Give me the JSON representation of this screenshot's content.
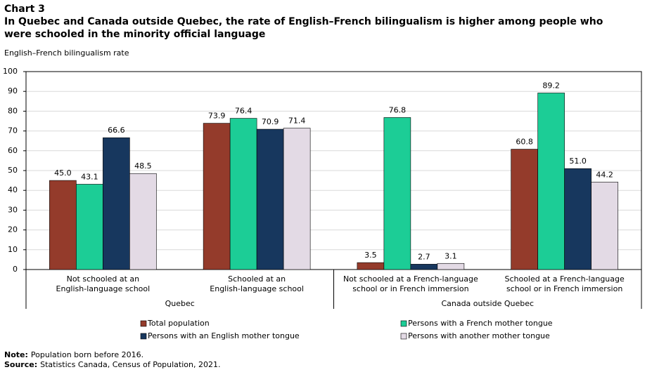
{
  "chart_data": {
    "type": "bar",
    "label": "Chart 3",
    "title": [
      "In Quebec and Canada outside Quebec, the rate of English–French bilingualism is higher among people who",
      "were schooled in the minority official language"
    ],
    "y_label": "English–French bilingualism rate",
    "groups": [
      {
        "name": "Quebec",
        "categories": [
          [
            "Not schooled at an",
            "English-language school"
          ],
          [
            "Schooled at an",
            "English-language school"
          ]
        ]
      },
      {
        "name": "Canada outside Quebec",
        "categories": [
          [
            "Not schooled at a French-language",
            "school or in French immersion"
          ],
          [
            "Schooled at a French-language",
            "school or in French immersion"
          ]
        ]
      }
    ],
    "series": [
      {
        "name": "Total population",
        "color": "#943b2b",
        "values": [
          45.0,
          73.9,
          3.5,
          60.8
        ],
        "value_labels": [
          "45.0",
          "73.9",
          "3.5",
          "60.8"
        ]
      },
      {
        "name": "Persons with a French mother tongue",
        "color": "#1ccd96",
        "values": [
          43.1,
          76.4,
          76.8,
          89.2
        ],
        "value_labels": [
          "43.1",
          "76.4",
          "76.8",
          "89.2"
        ]
      },
      {
        "name": "Persons with an English mother tongue",
        "color": "#17375e",
        "values": [
          66.6,
          70.9,
          2.7,
          51.0
        ],
        "value_labels": [
          "66.6",
          "70.9",
          "2.7",
          "51.0"
        ]
      },
      {
        "name": "Persons with another mother tongue",
        "color": "#e3dae5",
        "values": [
          48.5,
          71.4,
          3.1,
          44.2
        ],
        "value_labels": [
          "48.5",
          "71.4",
          "3.1",
          "44.2"
        ]
      }
    ],
    "ylim": [
      0,
      100
    ],
    "yticks": [
      0,
      10,
      20,
      30,
      40,
      50,
      60,
      70,
      80,
      90,
      100
    ],
    "grid": true,
    "notes": [
      {
        "label": "Note:",
        "text": "Population born before 2016."
      },
      {
        "label": "Source:",
        "text": "Statistics Canada, Census of Population, 2021."
      }
    ]
  }
}
